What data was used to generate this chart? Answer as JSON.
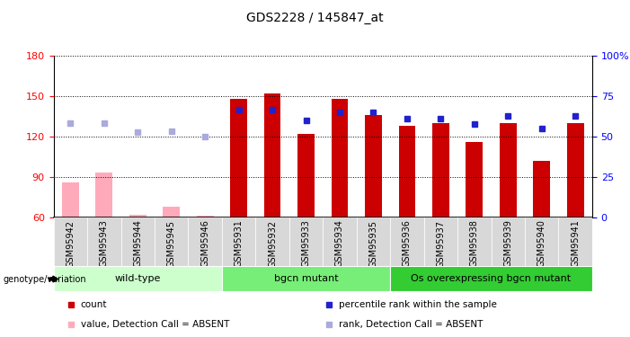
{
  "title": "GDS2228 / 145847_at",
  "samples": [
    "GSM95942",
    "GSM95943",
    "GSM95944",
    "GSM95945",
    "GSM95946",
    "GSM95931",
    "GSM95932",
    "GSM95933",
    "GSM95934",
    "GSM95935",
    "GSM95936",
    "GSM95937",
    "GSM95938",
    "GSM95939",
    "GSM95940",
    "GSM95941"
  ],
  "count_values": [
    86,
    93,
    62,
    68,
    61,
    148,
    152,
    122,
    148,
    136,
    128,
    130,
    116,
    130,
    102,
    130
  ],
  "rank_values": [
    130,
    130,
    123,
    124,
    120,
    140,
    140,
    132,
    138,
    138,
    133,
    133,
    129,
    135,
    126,
    135
  ],
  "absent_mask": [
    true,
    true,
    true,
    true,
    true,
    false,
    false,
    false,
    false,
    false,
    false,
    false,
    false,
    false,
    false,
    false
  ],
  "count_bar_color_present": "#cc0000",
  "count_bar_color_absent": "#ffaabb",
  "rank_marker_color_present": "#2222cc",
  "rank_marker_color_absent": "#aaaadd",
  "ylim_left": [
    60,
    180
  ],
  "ylim_right": [
    0,
    100
  ],
  "yticks_left": [
    60,
    90,
    120,
    150,
    180
  ],
  "yticks_right": [
    0,
    25,
    50,
    75,
    100
  ],
  "yticklabels_right": [
    "0",
    "25",
    "50",
    "75",
    "100%"
  ],
  "groups": [
    {
      "label": "wild-type",
      "start": 0,
      "end": 5,
      "color": "#ccffcc"
    },
    {
      "label": "bgcn mutant",
      "start": 5,
      "end": 10,
      "color": "#77ee77"
    },
    {
      "label": "Os overexpressing bgcn mutant",
      "start": 10,
      "end": 16,
      "color": "#33cc33"
    }
  ],
  "genotype_label": "genotype/variation",
  "legend_items": [
    {
      "label": "count",
      "color": "#cc0000"
    },
    {
      "label": "percentile rank within the sample",
      "color": "#2222cc"
    },
    {
      "label": "value, Detection Call = ABSENT",
      "color": "#ffaabb"
    },
    {
      "label": "rank, Detection Call = ABSENT",
      "color": "#aaaadd"
    }
  ],
  "bar_width": 0.5,
  "marker_size": 5,
  "title_fontsize": 10,
  "axis_fontsize": 8,
  "tick_label_fontsize": 7,
  "legend_fontsize": 7.5,
  "group_label_fontsize": 8
}
